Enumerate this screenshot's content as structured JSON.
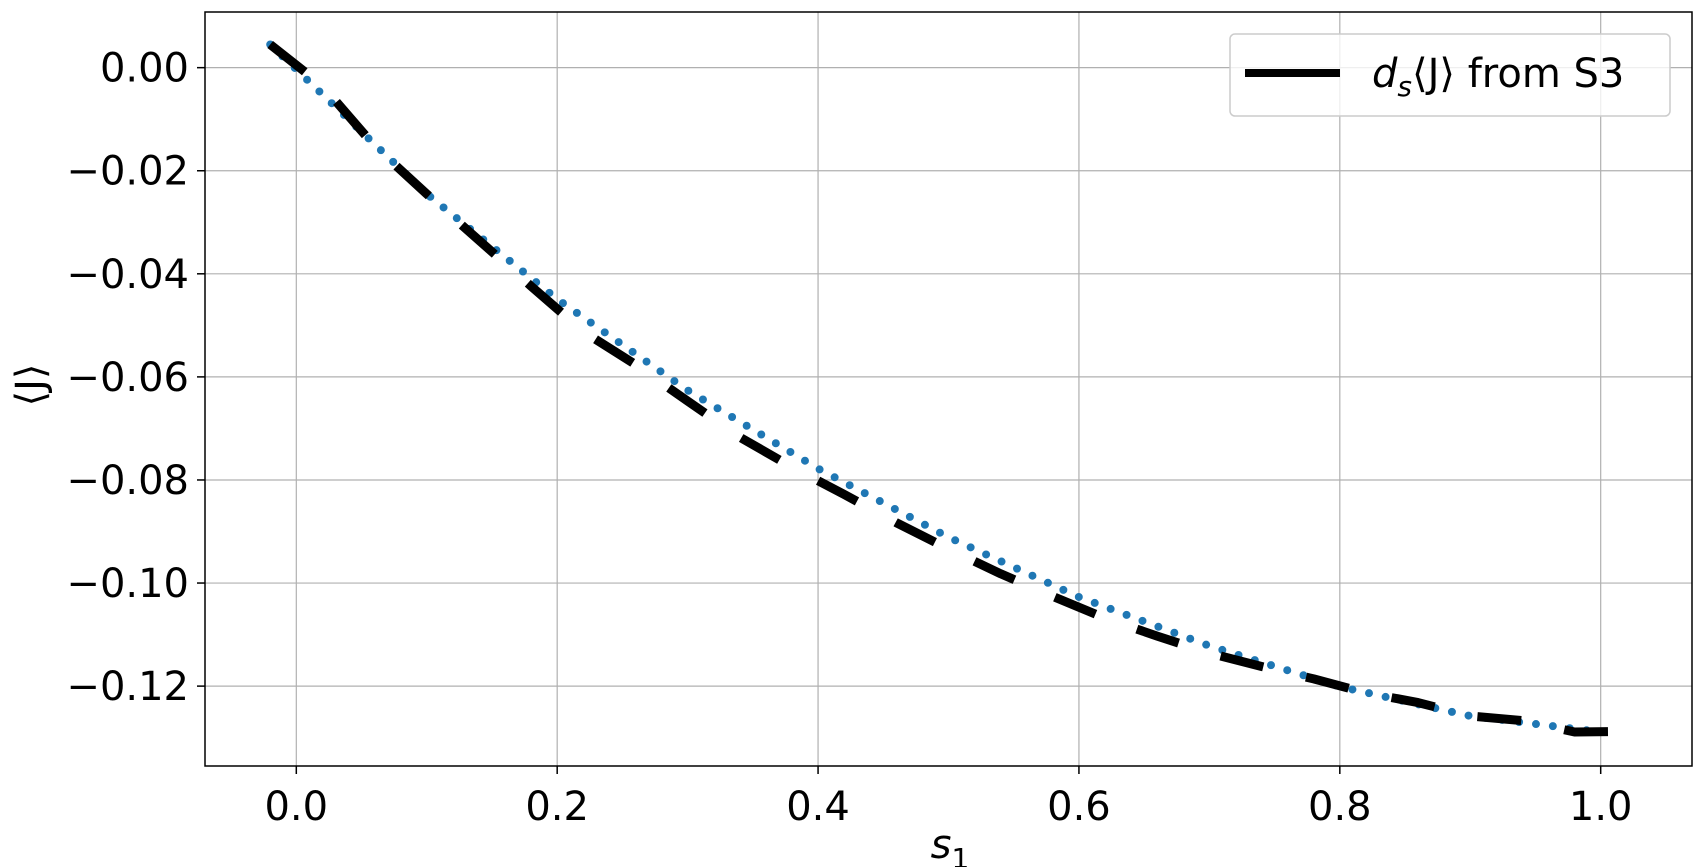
{
  "chart_data": {
    "type": "line",
    "xlabel": "s",
    "xlabel_sub": "1",
    "ylabel": "⟨J⟩",
    "xlim": [
      -0.07,
      1.07
    ],
    "ylim": [
      -0.1355,
      0.0108
    ],
    "x_ticks": [
      0.0,
      0.2,
      0.4,
      0.6,
      0.8,
      1.0
    ],
    "x_tick_labels": [
      "0.0",
      "0.2",
      "0.4",
      "0.6",
      "0.8",
      "1.0"
    ],
    "y_ticks": [
      0.0,
      -0.02,
      -0.04,
      -0.06,
      -0.08,
      -0.1,
      -0.12
    ],
    "y_tick_labels": [
      "0.00",
      "−0.02",
      "−0.04",
      "−0.06",
      "−0.08",
      "−0.10",
      "−0.12"
    ],
    "grid": true,
    "legend_position": "top-right",
    "series": [
      {
        "label_prefix": "d",
        "label_sub": "s",
        "label_mid": "⟨J⟩",
        "label_suffix": " from S3",
        "color": "#000000",
        "style": "dashed",
        "x": [
          -0.02,
          0.02,
          0.06,
          0.1,
          0.14,
          0.18,
          0.22,
          0.26,
          0.3,
          0.34,
          0.38,
          0.42,
          0.46,
          0.5,
          0.54,
          0.58,
          0.62,
          0.66,
          0.7,
          0.74,
          0.78,
          0.82,
          0.86,
          0.9,
          0.94,
          0.98,
          1.02
        ],
        "y": [
          0.0045,
          -0.0035,
          -0.0152,
          -0.0245,
          -0.0335,
          -0.0424,
          -0.0512,
          -0.0576,
          -0.0647,
          -0.0717,
          -0.0775,
          -0.0828,
          -0.0883,
          -0.0934,
          -0.0982,
          -0.1026,
          -0.1068,
          -0.1103,
          -0.1136,
          -0.1162,
          -0.1186,
          -0.1213,
          -0.1232,
          -0.1258,
          -0.1267,
          -0.1289,
          -0.1288
        ]
      },
      {
        "color": "#1f77b4",
        "style": "dotted",
        "x": [
          -0.02,
          0.1,
          0.2,
          0.3,
          0.4,
          0.5,
          0.6,
          0.7,
          0.8,
          0.9,
          1.0
        ],
        "y": [
          0.0045,
          -0.0245,
          -0.0449,
          -0.0626,
          -0.0778,
          -0.0911,
          -0.1027,
          -0.1122,
          -0.1201,
          -0.1258,
          -0.1289
        ]
      }
    ]
  }
}
